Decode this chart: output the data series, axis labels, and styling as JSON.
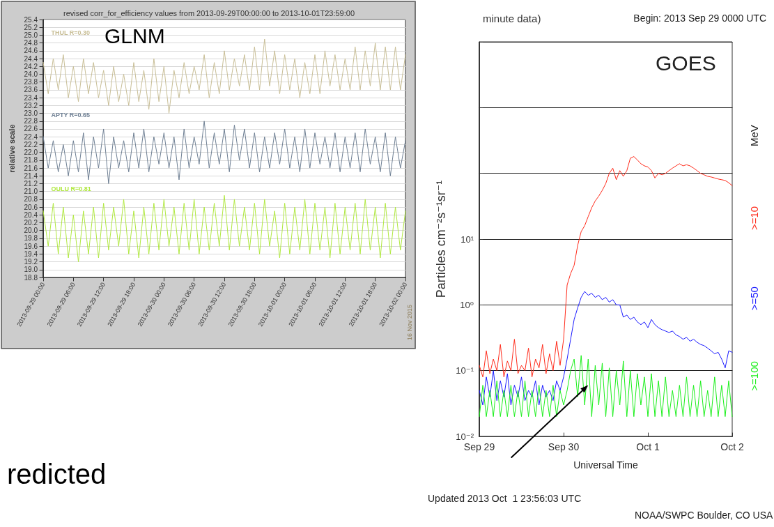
{
  "chart_data": [
    {
      "type": "line",
      "title": "revised corr_for_efficiency values from 2013-09-29T00:00:00 to 2013-10-01T23:59:00",
      "ylabel": "relative scale",
      "annotations": [
        "GLNM",
        "16 Nov 2015",
        "redicted"
      ],
      "grid": "y",
      "xlim": [
        "2013-09-29",
        "2013-10-02"
      ],
      "xticks": [
        {
          "value": "2013-09-29T00:00",
          "label": "2013-09-29 00:00"
        },
        {
          "value": "2013-09-29T06:00",
          "label": "2013-09-29 06:00"
        },
        {
          "value": "2013-09-29T12:00",
          "label": "2013-09-29 12:00"
        },
        {
          "value": "2013-09-29T18:00",
          "label": "2013-09-29 18:00"
        },
        {
          "value": "2013-09-30T00:00",
          "label": "2013-09-30 00:00"
        },
        {
          "value": "2013-09-30T06:00",
          "label": "2013-09-30 06:00"
        },
        {
          "value": "2013-09-30T12:00",
          "label": "2013-09-30 12:00"
        },
        {
          "value": "2013-09-30T18:00",
          "label": "2013-09-30 18:00"
        },
        {
          "value": "2013-10-01T00:00",
          "label": "2013-10-01 00:00"
        },
        {
          "value": "2013-10-01T06:00",
          "label": "2013-10-01 06:00"
        },
        {
          "value": "2013-10-01T12:00",
          "label": "2013-10-01 12:00"
        },
        {
          "value": "2013-10-01T18:00",
          "label": "2013-10-01 18:00"
        },
        {
          "value": "2013-10-02T00:00",
          "label": "2013-10-02 00:00"
        }
      ],
      "ylim": [
        18.8,
        25.4
      ],
      "yticks": [
        18.8,
        {
          "value": 19,
          "label": "19.0"
        },
        19.2,
        19.4,
        19.6,
        19.8,
        {
          "value": 20,
          "label": "20.0"
        },
        20.2,
        20.4,
        20.6,
        20.8,
        {
          "value": 21,
          "label": "21.0"
        },
        21.2,
        21.4,
        21.6,
        21.8,
        {
          "value": 22,
          "label": "22.0"
        },
        22.2,
        22.4,
        22.6,
        22.8,
        {
          "value": 23,
          "label": "23.0"
        },
        23.2,
        23.4,
        23.6,
        23.8,
        {
          "value": 24,
          "label": "24.0"
        },
        24.2,
        24.4,
        24.6,
        24.8,
        {
          "value": 25,
          "label": "25.0"
        },
        25.2,
        25.4
      ],
      "x": [
        "2013-09-29T00:00",
        "2013-09-29T01:00",
        "2013-09-29T02:00",
        "2013-09-29T03:00",
        "2013-09-29T04:00",
        "2013-09-29T05:00",
        "2013-09-29T06:00",
        "2013-09-29T07:00",
        "2013-09-29T08:00",
        "2013-09-29T09:00",
        "2013-09-29T10:00",
        "2013-09-29T11:00",
        "2013-09-29T12:00",
        "2013-09-29T13:00",
        "2013-09-29T14:00",
        "2013-09-29T15:00",
        "2013-09-29T16:00",
        "2013-09-29T17:00",
        "2013-09-29T18:00",
        "2013-09-29T19:00",
        "2013-09-29T20:00",
        "2013-09-29T21:00",
        "2013-09-29T22:00",
        "2013-09-29T23:00",
        "2013-09-30T00:00",
        "2013-09-30T01:00",
        "2013-09-30T02:00",
        "2013-09-30T03:00",
        "2013-09-30T04:00",
        "2013-09-30T05:00",
        "2013-09-30T06:00",
        "2013-09-30T07:00",
        "2013-09-30T08:00",
        "2013-09-30T09:00",
        "2013-09-30T10:00",
        "2013-09-30T11:00",
        "2013-09-30T12:00",
        "2013-09-30T13:00",
        "2013-09-30T14:00",
        "2013-09-30T15:00",
        "2013-09-30T16:00",
        "2013-09-30T17:00",
        "2013-09-30T18:00",
        "2013-09-30T19:00",
        "2013-09-30T20:00",
        "2013-09-30T21:00",
        "2013-09-30T22:00",
        "2013-09-30T23:00",
        "2013-10-01T00:00",
        "2013-10-01T01:00",
        "2013-10-01T02:00",
        "2013-10-01T03:00",
        "2013-10-01T04:00",
        "2013-10-01T05:00",
        "2013-10-01T06:00",
        "2013-10-01T07:00",
        "2013-10-01T08:00",
        "2013-10-01T09:00",
        "2013-10-01T10:00",
        "2013-10-01T11:00",
        "2013-10-01T12:00",
        "2013-10-01T13:00",
        "2013-10-01T14:00",
        "2013-10-01T15:00",
        "2013-10-01T16:00",
        "2013-10-01T17:00",
        "2013-10-01T18:00",
        "2013-10-01T19:00",
        "2013-10-01T20:00",
        "2013-10-01T21:00",
        "2013-10-01T22:00",
        "2013-10-01T23:00",
        "2013-10-02T00:00"
      ],
      "series": [
        {
          "name": "THUL R=0.30",
          "color": "#c8be96",
          "values": [
            24.3,
            23.5,
            24.4,
            23.6,
            24.5,
            23.4,
            24.2,
            23.3,
            24.4,
            23.5,
            24.3,
            23.4,
            24.1,
            23.2,
            24.2,
            23.3,
            24.0,
            23.2,
            24.3,
            23.3,
            24.1,
            23.1,
            24.4,
            23.3,
            24.2,
            23.0,
            24.1,
            23.4,
            24.3,
            23.5,
            24.2,
            23.6,
            24.5,
            23.4,
            24.3,
            23.5,
            24.6,
            23.6,
            24.4,
            23.7,
            24.5,
            23.6,
            24.7,
            23.6,
            24.9,
            23.7,
            24.6,
            23.5,
            24.5,
            23.6,
            24.4,
            23.4,
            24.3,
            23.5,
            24.5,
            23.5,
            24.6,
            23.7,
            24.5,
            23.6,
            24.4,
            23.6,
            24.7,
            23.6,
            24.6,
            23.7,
            24.8,
            23.6,
            24.7,
            23.6,
            24.7,
            23.6,
            24.5
          ]
        },
        {
          "name": "APTY R=0.65",
          "color": "#6e7f93",
          "values": [
            22.4,
            21.6,
            22.3,
            21.5,
            22.2,
            21.4,
            22.3,
            21.5,
            22.5,
            21.3,
            22.4,
            21.6,
            22.6,
            21.2,
            22.4,
            21.6,
            22.3,
            21.5,
            22.5,
            21.6,
            22.6,
            21.5,
            22.4,
            21.7,
            22.5,
            21.6,
            22.4,
            21.3,
            22.6,
            21.6,
            22.4,
            21.7,
            22.8,
            21.6,
            22.5,
            21.7,
            22.6,
            21.5,
            22.7,
            21.8,
            22.6,
            21.6,
            22.5,
            21.5,
            22.4,
            21.6,
            22.5,
            21.7,
            22.6,
            21.6,
            22.4,
            21.5,
            22.6,
            21.6,
            22.5,
            21.7,
            22.4,
            21.6,
            22.5,
            21.5,
            22.4,
            21.6,
            22.5,
            21.5,
            22.6,
            21.7,
            22.4,
            21.5,
            22.5,
            21.4,
            22.4,
            21.6,
            22.3
          ]
        },
        {
          "name": "OULU R=0.81",
          "color": "#b0e840",
          "values": [
            20.5,
            19.6,
            20.7,
            19.4,
            20.6,
            19.3,
            20.4,
            19.2,
            20.5,
            19.4,
            20.6,
            19.3,
            20.7,
            19.5,
            20.6,
            19.6,
            20.8,
            19.4,
            20.5,
            19.3,
            20.6,
            19.4,
            20.7,
            19.5,
            20.8,
            19.6,
            20.6,
            19.4,
            20.7,
            19.5,
            20.8,
            19.4,
            20.6,
            19.5,
            20.7,
            19.6,
            20.9,
            19.5,
            20.8,
            19.6,
            20.6,
            19.5,
            20.7,
            19.4,
            20.8,
            19.6,
            20.5,
            19.3,
            20.7,
            19.4,
            20.6,
            19.5,
            20.8,
            19.4,
            20.7,
            19.5,
            20.6,
            19.3,
            20.7,
            19.4,
            20.6,
            19.5,
            20.7,
            19.4,
            20.8,
            19.5,
            20.6,
            19.3,
            20.7,
            19.4,
            20.6,
            19.5,
            20.5
          ]
        }
      ]
    },
    {
      "type": "line",
      "title": "minute data)",
      "subtitle": "Begin: 2013 Sep 29 0000 UTC",
      "xlabel": "Universal Time",
      "ylabel": "Particles cm⁻²s⁻¹sr⁻¹",
      "annotations": [
        "GOES",
        "Updated 2013 Oct  1 23:56:03 UTC",
        "NOAA/SWPC Boulder, CO USA",
        "MeV"
      ],
      "grid": "y",
      "log": "y",
      "xlim": [
        "2013-09-29",
        "2013-10-02"
      ],
      "xticks": [
        {
          "value": "2013-09-29",
          "label": "Sep 29"
        },
        {
          "value": "2013-09-30",
          "label": "Sep 30"
        },
        {
          "value": "2013-10-01",
          "label": "Oct 1"
        },
        {
          "value": "2013-10-02",
          "label": "Oct 2"
        }
      ],
      "ylim": [
        0.01,
        10000
      ],
      "yticks": [
        {
          "value": 0.01,
          "label": "10⁻²"
        },
        {
          "value": 0.1,
          "label": "10⁻¹"
        },
        {
          "value": 1,
          "label": "10⁰"
        },
        {
          "value": 10,
          "label": "10¹"
        },
        {
          "value": 100,
          "label": null
        },
        {
          "value": 1000,
          "label": null
        },
        {
          "value": 10000,
          "label": null
        }
      ],
      "x": [
        "2013-09-29T00:00",
        "2013-09-29T01:00",
        "2013-09-29T02:00",
        "2013-09-29T03:00",
        "2013-09-29T04:00",
        "2013-09-29T05:00",
        "2013-09-29T06:00",
        "2013-09-29T07:00",
        "2013-09-29T08:00",
        "2013-09-29T09:00",
        "2013-09-29T10:00",
        "2013-09-29T11:00",
        "2013-09-29T12:00",
        "2013-09-29T13:00",
        "2013-09-29T14:00",
        "2013-09-29T15:00",
        "2013-09-29T16:00",
        "2013-09-29T17:00",
        "2013-09-29T18:00",
        "2013-09-29T19:00",
        "2013-09-29T20:00",
        "2013-09-29T21:00",
        "2013-09-29T22:00",
        "2013-09-29T23:00",
        "2013-09-30T00:00",
        "2013-09-30T01:00",
        "2013-09-30T02:00",
        "2013-09-30T03:00",
        "2013-09-30T04:00",
        "2013-09-30T05:00",
        "2013-09-30T06:00",
        "2013-09-30T07:00",
        "2013-09-30T08:00",
        "2013-09-30T09:00",
        "2013-09-30T10:00",
        "2013-09-30T11:00",
        "2013-09-30T12:00",
        "2013-09-30T13:00",
        "2013-09-30T14:00",
        "2013-09-30T15:00",
        "2013-09-30T16:00",
        "2013-09-30T17:00",
        "2013-09-30T18:00",
        "2013-09-30T19:00",
        "2013-09-30T20:00",
        "2013-09-30T21:00",
        "2013-09-30T22:00",
        "2013-09-30T23:00",
        "2013-10-01T00:00",
        "2013-10-01T01:00",
        "2013-10-01T02:00",
        "2013-10-01T03:00",
        "2013-10-01T04:00",
        "2013-10-01T05:00",
        "2013-10-01T06:00",
        "2013-10-01T07:00",
        "2013-10-01T08:00",
        "2013-10-01T09:00",
        "2013-10-01T10:00",
        "2013-10-01T11:00",
        "2013-10-01T12:00",
        "2013-10-01T13:00",
        "2013-10-01T14:00",
        "2013-10-01T15:00",
        "2013-10-01T16:00",
        "2013-10-01T17:00",
        "2013-10-01T18:00",
        "2013-10-01T19:00",
        "2013-10-01T20:00",
        "2013-10-01T21:00",
        "2013-10-01T22:00",
        "2013-10-01T23:00",
        "2013-10-02T00:00"
      ],
      "series": [
        {
          "name": ">=10",
          "color": "#ff2a1a",
          "values": [
            0.12,
            0.08,
            0.2,
            0.09,
            0.15,
            0.1,
            0.25,
            0.08,
            0.14,
            0.1,
            0.3,
            0.09,
            0.12,
            0.1,
            0.22,
            0.08,
            0.15,
            0.11,
            0.25,
            0.09,
            0.18,
            0.1,
            0.28,
            0.12,
            0.3,
            2,
            3,
            4,
            8,
            13,
            16,
            22,
            30,
            38,
            45,
            55,
            70,
            100,
            120,
            80,
            110,
            90,
            110,
            170,
            180,
            160,
            140,
            130,
            125,
            110,
            85,
            100,
            95,
            100,
            110,
            120,
            130,
            140,
            130,
            135,
            130,
            120,
            110,
            100,
            95,
            90,
            88,
            85,
            82,
            80,
            78,
            72,
            65
          ]
        },
        {
          "name": ">=50",
          "color": "#1a1aff",
          "values": [
            0.05,
            0.03,
            0.08,
            0.04,
            0.1,
            0.035,
            0.07,
            0.04,
            0.09,
            0.03,
            0.06,
            0.04,
            0.08,
            0.035,
            0.05,
            0.04,
            0.07,
            0.03,
            0.06,
            0.04,
            0.05,
            0.035,
            0.07,
            0.05,
            0.08,
            0.15,
            0.3,
            0.6,
            0.9,
            1.3,
            1.6,
            1.4,
            1.5,
            1.3,
            1.4,
            1.2,
            1.3,
            1.1,
            1.2,
            1.0,
            1.0,
            0.65,
            0.7,
            0.6,
            0.65,
            0.55,
            0.5,
            0.55,
            0.45,
            0.6,
            0.5,
            0.45,
            0.42,
            0.4,
            0.38,
            0.4,
            0.35,
            0.33,
            0.3,
            0.32,
            0.28,
            0.3,
            0.27,
            0.25,
            0.24,
            0.22,
            0.2,
            0.18,
            0.19,
            0.15,
            0.11,
            0.2,
            0.19
          ]
        },
        {
          "name": ">=100",
          "color": "#1aef1a",
          "values": [
            0.02,
            0.06,
            0.02,
            0.05,
            0.02,
            0.07,
            0.02,
            0.05,
            0.02,
            0.06,
            0.02,
            0.05,
            0.02,
            0.07,
            0.02,
            0.05,
            0.02,
            0.06,
            0.02,
            0.05,
            0.02,
            0.06,
            0.02,
            0.05,
            0.03,
            0.05,
            0.1,
            0.15,
            0.04,
            0.17,
            0.03,
            0.15,
            0.02,
            0.12,
            0.03,
            0.13,
            0.02,
            0.11,
            0.02,
            0.1,
            0.03,
            0.14,
            0.02,
            0.1,
            0.02,
            0.09,
            0.03,
            0.08,
            0.02,
            0.09,
            0.02,
            0.07,
            0.02,
            0.08,
            0.02,
            0.05,
            0.02,
            0.06,
            0.02,
            0.08,
            0.02,
            0.06,
            0.02,
            0.07,
            0.02,
            0.05,
            0.02,
            0.08,
            0.02,
            0.06,
            0.02,
            0.07,
            0.02
          ]
        }
      ]
    }
  ]
}
